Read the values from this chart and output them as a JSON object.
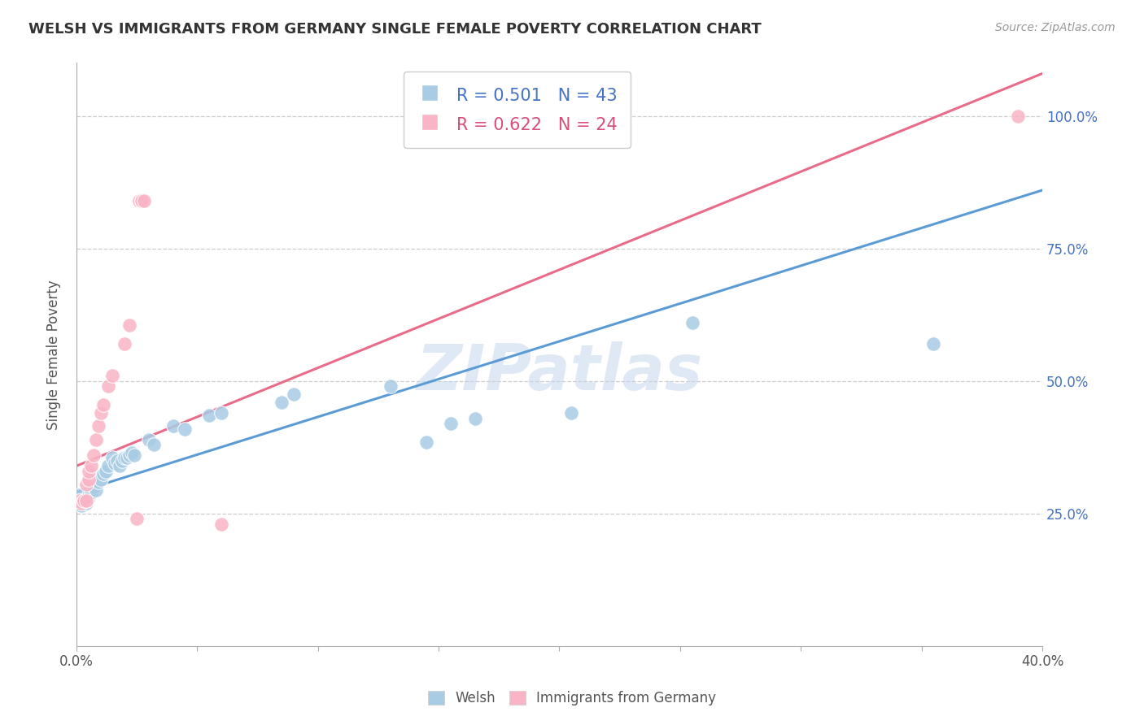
{
  "title": "WELSH VS IMMIGRANTS FROM GERMANY SINGLE FEMALE POVERTY CORRELATION CHART",
  "source": "Source: ZipAtlas.com",
  "ylabel": "Single Female Poverty",
  "xlim": [
    0.0,
    0.4
  ],
  "ylim": [
    0.0,
    1.1
  ],
  "xticks": [
    0.0,
    0.05,
    0.1,
    0.15,
    0.2,
    0.25,
    0.3,
    0.35,
    0.4
  ],
  "yticks": [
    0.25,
    0.5,
    0.75,
    1.0
  ],
  "ytick_labels": [
    "25.0%",
    "50.0%",
    "75.0%",
    "100.0%"
  ],
  "legend_R1": "R = 0.501",
  "legend_N1": "N = 43",
  "legend_R2": "R = 0.622",
  "legend_N2": "N = 24",
  "legend_label1": "Welsh",
  "legend_label2": "Immigrants from Germany",
  "color_blue": "#a8cce4",
  "color_pink": "#f9b4c5",
  "color_blue_line": "#5b9bd5",
  "color_pink_line": "#e96b8a",
  "color_blue_text": "#4472c4",
  "color_pink_text": "#d94f7a",
  "watermark": "ZIPatlas",
  "blue_scatter": [
    [
      0.001,
      0.285
    ],
    [
      0.002,
      0.275
    ],
    [
      0.002,
      0.265
    ],
    [
      0.003,
      0.275
    ],
    [
      0.003,
      0.275
    ],
    [
      0.004,
      0.27
    ],
    [
      0.004,
      0.275
    ],
    [
      0.005,
      0.28
    ],
    [
      0.005,
      0.285
    ],
    [
      0.006,
      0.29
    ],
    [
      0.007,
      0.3
    ],
    [
      0.008,
      0.295
    ],
    [
      0.009,
      0.31
    ],
    [
      0.01,
      0.32
    ],
    [
      0.01,
      0.315
    ],
    [
      0.011,
      0.325
    ],
    [
      0.012,
      0.33
    ],
    [
      0.013,
      0.34
    ],
    [
      0.015,
      0.355
    ],
    [
      0.016,
      0.345
    ],
    [
      0.017,
      0.35
    ],
    [
      0.018,
      0.34
    ],
    [
      0.019,
      0.35
    ],
    [
      0.02,
      0.355
    ],
    [
      0.021,
      0.355
    ],
    [
      0.022,
      0.36
    ],
    [
      0.023,
      0.365
    ],
    [
      0.024,
      0.36
    ],
    [
      0.03,
      0.39
    ],
    [
      0.032,
      0.38
    ],
    [
      0.04,
      0.415
    ],
    [
      0.045,
      0.41
    ],
    [
      0.055,
      0.435
    ],
    [
      0.06,
      0.44
    ],
    [
      0.085,
      0.46
    ],
    [
      0.09,
      0.475
    ],
    [
      0.13,
      0.49
    ],
    [
      0.145,
      0.385
    ],
    [
      0.155,
      0.42
    ],
    [
      0.165,
      0.43
    ],
    [
      0.205,
      0.44
    ],
    [
      0.255,
      0.61
    ],
    [
      0.355,
      0.57
    ]
  ],
  "pink_scatter": [
    [
      0.001,
      0.275
    ],
    [
      0.002,
      0.27
    ],
    [
      0.003,
      0.275
    ],
    [
      0.004,
      0.275
    ],
    [
      0.004,
      0.305
    ],
    [
      0.005,
      0.315
    ],
    [
      0.005,
      0.33
    ],
    [
      0.006,
      0.34
    ],
    [
      0.007,
      0.36
    ],
    [
      0.008,
      0.39
    ],
    [
      0.009,
      0.415
    ],
    [
      0.01,
      0.44
    ],
    [
      0.011,
      0.455
    ],
    [
      0.013,
      0.49
    ],
    [
      0.015,
      0.51
    ],
    [
      0.02,
      0.57
    ],
    [
      0.022,
      0.605
    ],
    [
      0.025,
      0.24
    ],
    [
      0.026,
      0.84
    ],
    [
      0.027,
      0.84
    ],
    [
      0.027,
      0.84
    ],
    [
      0.028,
      0.84
    ],
    [
      0.06,
      0.23
    ],
    [
      0.39,
      1.0
    ]
  ],
  "blue_line_x": [
    0.0,
    0.4
  ],
  "blue_line_y": [
    0.29,
    0.86
  ],
  "pink_line_x": [
    0.0,
    0.4
  ],
  "pink_line_y": [
    0.34,
    1.08
  ]
}
